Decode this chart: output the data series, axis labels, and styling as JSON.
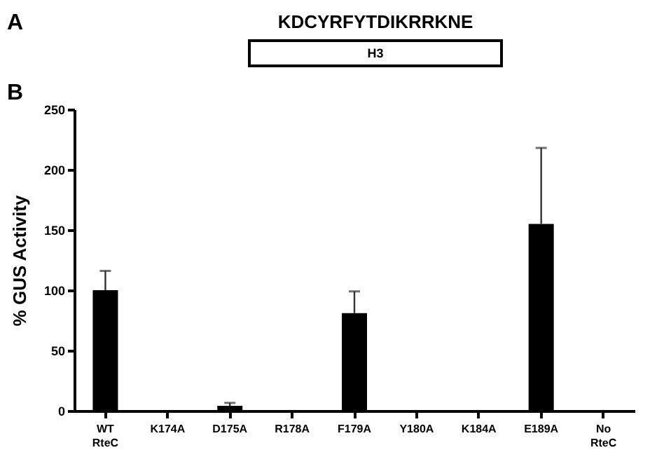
{
  "chart_data": {
    "type": "bar",
    "ylabel": "% GUS Activity",
    "categories": [
      "WT RteC",
      "K174A",
      "D175A",
      "R178A",
      "F179A",
      "Y180A",
      "K184A",
      "E189A",
      "No RteC"
    ],
    "values": [
      100,
      0,
      4,
      0,
      81,
      0,
      0,
      155,
      0
    ],
    "errors": [
      [
        100,
        116
      ],
      null,
      [
        4,
        6.5
      ],
      null,
      [
        81,
        99
      ],
      null,
      null,
      [
        155,
        218
      ],
      null
    ],
    "color": "#000000",
    "ylim": [
      0,
      250
    ],
    "yticks": [
      0,
      50,
      100,
      150,
      200,
      250
    ],
    "grid": false,
    "annotations": [
      "A",
      "KDCYRFYTDIKRRKNE",
      "H3",
      "B"
    ]
  }
}
